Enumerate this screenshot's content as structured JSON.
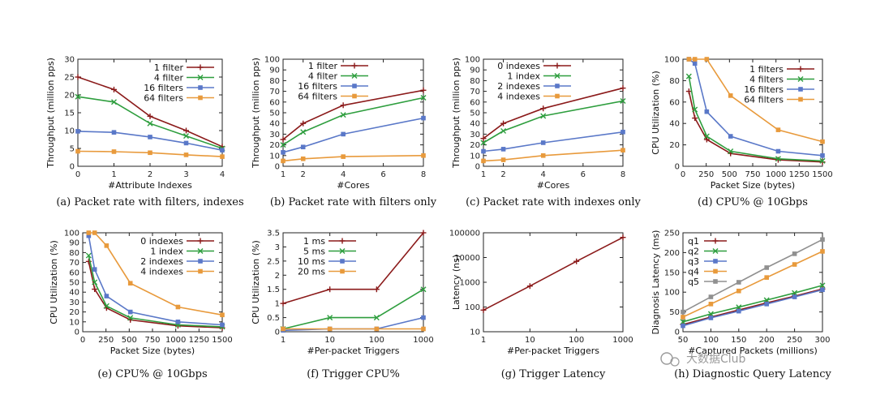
{
  "watermark": "大数据Club",
  "chart_data": [
    {
      "id": "a",
      "type": "line",
      "caption": "(a) Packet rate with filters, indexes",
      "xlabel": "#Attribute Indexes",
      "ylabel": "Throughput (million pps)",
      "xlim": [
        0,
        4
      ],
      "ylim": [
        0,
        30
      ],
      "xticks": [
        0,
        1,
        2,
        3,
        4
      ],
      "yticks": [
        0,
        5,
        10,
        15,
        20,
        25,
        30
      ],
      "legend_position": "top-right",
      "grid": false,
      "series": [
        {
          "name": "1 filter",
          "color": "#8b1a1a",
          "marker": "+",
          "x": [
            0,
            1,
            2,
            3,
            4
          ],
          "y": [
            25,
            21.5,
            14,
            10,
            5.5
          ]
        },
        {
          "name": "4 filter",
          "color": "#2e9e3e",
          "marker": "x",
          "x": [
            0,
            1,
            2,
            3,
            4
          ],
          "y": [
            19.5,
            18,
            12,
            8.5,
            5
          ]
        },
        {
          "name": "16 filters",
          "color": "#5a78c8",
          "marker": "sq",
          "x": [
            0,
            1,
            2,
            3,
            4
          ],
          "y": [
            9.8,
            9.5,
            8.2,
            6.5,
            4.5
          ]
        },
        {
          "name": "64 filters",
          "color": "#e89a3c",
          "marker": "sq",
          "x": [
            0,
            1,
            2,
            3,
            4
          ],
          "y": [
            4.2,
            4.1,
            3.8,
            3.2,
            2.7
          ]
        }
      ]
    },
    {
      "id": "b",
      "type": "line",
      "caption": "(b) Packet rate with filters only",
      "xlabel": "#Cores",
      "ylabel": "Throughput (million pps)",
      "xlim": [
        1,
        8
      ],
      "ylim": [
        0,
        100
      ],
      "xticks": [
        1,
        2,
        4,
        6,
        8
      ],
      "yticks": [
        0,
        10,
        20,
        30,
        40,
        50,
        60,
        70,
        80,
        90,
        100
      ],
      "legend_position": "top-left",
      "grid": false,
      "series": [
        {
          "name": "1 filter",
          "color": "#8b1a1a",
          "marker": "+",
          "x": [
            1,
            2,
            4,
            8
          ],
          "y": [
            25,
            40,
            57,
            71
          ]
        },
        {
          "name": "4 filter",
          "color": "#2e9e3e",
          "marker": "x",
          "x": [
            1,
            2,
            4,
            8
          ],
          "y": [
            20,
            32,
            48,
            64
          ]
        },
        {
          "name": "16 filters",
          "color": "#5a78c8",
          "marker": "sq",
          "x": [
            1,
            2,
            4,
            8
          ],
          "y": [
            13,
            18,
            30,
            45
          ]
        },
        {
          "name": "64 filters",
          "color": "#e89a3c",
          "marker": "sq",
          "x": [
            1,
            2,
            4,
            8
          ],
          "y": [
            5,
            7,
            9,
            10
          ]
        }
      ]
    },
    {
      "id": "c",
      "type": "line",
      "caption": "(c) Packet rate with indexes only",
      "xlabel": "#Cores",
      "ylabel": "Throughput (million pps)",
      "xlim": [
        1,
        8
      ],
      "ylim": [
        0,
        100
      ],
      "xticks": [
        1,
        2,
        4,
        6,
        8
      ],
      "yticks": [
        0,
        10,
        20,
        30,
        40,
        50,
        60,
        70,
        80,
        90,
        100
      ],
      "legend_position": "top-left",
      "grid": false,
      "series": [
        {
          "name": "0 indexes",
          "color": "#8b1a1a",
          "marker": "+",
          "x": [
            1,
            2,
            4,
            8
          ],
          "y": [
            26,
            40,
            54,
            73
          ]
        },
        {
          "name": "1 index",
          "color": "#2e9e3e",
          "marker": "x",
          "x": [
            1,
            2,
            4,
            8
          ],
          "y": [
            22,
            33,
            47,
            61
          ]
        },
        {
          "name": "2 indexes",
          "color": "#5a78c8",
          "marker": "sq",
          "x": [
            1,
            2,
            4,
            8
          ],
          "y": [
            14,
            16,
            22,
            32
          ]
        },
        {
          "name": "4 indexes",
          "color": "#e89a3c",
          "marker": "sq",
          "x": [
            1,
            2,
            4,
            8
          ],
          "y": [
            5,
            6,
            10,
            15
          ]
        }
      ]
    },
    {
      "id": "d",
      "type": "line",
      "caption": "(d) CPU% @ 10Gbps",
      "xlabel": "Packet Size (bytes)",
      "ylabel": "CPU Utilization (%)",
      "xlim": [
        0,
        1500
      ],
      "ylim": [
        0,
        100
      ],
      "xticks": [
        0,
        250,
        500,
        750,
        1000,
        1250,
        1500
      ],
      "yticks": [
        0,
        20,
        40,
        60,
        80,
        100
      ],
      "legend_position": "top-right",
      "grid": false,
      "series": [
        {
          "name": "1 filters",
          "color": "#8b1a1a",
          "marker": "+",
          "x": [
            64,
            128,
            256,
            512,
            1024,
            1500
          ],
          "y": [
            70,
            45,
            25,
            12,
            6,
            4
          ]
        },
        {
          "name": "4 filters",
          "color": "#2e9e3e",
          "marker": "x",
          "x": [
            64,
            128,
            256,
            512,
            1024,
            1500
          ],
          "y": [
            84,
            53,
            28,
            14,
            7,
            5
          ]
        },
        {
          "name": "16 filters",
          "color": "#5a78c8",
          "marker": "sq",
          "x": [
            64,
            128,
            256,
            512,
            1024,
            1500
          ],
          "y": [
            100,
            96,
            51,
            28,
            14,
            10
          ]
        },
        {
          "name": "64 filters",
          "color": "#e89a3c",
          "marker": "sq",
          "x": [
            64,
            128,
            256,
            512,
            1024,
            1500
          ],
          "y": [
            100,
            100,
            100,
            66,
            34,
            23
          ]
        }
      ]
    },
    {
      "id": "e",
      "type": "line",
      "caption": "(e) CPU% @ 10Gbps",
      "xlabel": "Packet Size (bytes)",
      "ylabel": "CPU Utilization (%)",
      "xlim": [
        0,
        1500
      ],
      "ylim": [
        0,
        100
      ],
      "xticks": [
        0,
        250,
        500,
        750,
        1000,
        1250,
        1500
      ],
      "yticks": [
        0,
        10,
        20,
        30,
        40,
        50,
        60,
        70,
        80,
        90,
        100
      ],
      "legend_position": "top-right",
      "grid": false,
      "series": [
        {
          "name": "0 indexes",
          "color": "#8b1a1a",
          "marker": "+",
          "x": [
            64,
            128,
            256,
            512,
            1024,
            1500
          ],
          "y": [
            71,
            43,
            24,
            12,
            6,
            4
          ]
        },
        {
          "name": "1 index",
          "color": "#2e9e3e",
          "marker": "x",
          "x": [
            64,
            128,
            256,
            512,
            1024,
            1500
          ],
          "y": [
            77,
            50,
            26,
            14,
            7,
            5
          ]
        },
        {
          "name": "2 indexes",
          "color": "#5a78c8",
          "marker": "sq",
          "x": [
            64,
            128,
            256,
            512,
            1024,
            1500
          ],
          "y": [
            97,
            63,
            36,
            20,
            10,
            7
          ]
        },
        {
          "name": "4 indexes",
          "color": "#e89a3c",
          "marker": "sq",
          "x": [
            64,
            128,
            256,
            512,
            1024,
            1500
          ],
          "y": [
            100,
            100,
            87,
            49,
            25,
            17
          ]
        }
      ]
    },
    {
      "id": "f",
      "type": "line",
      "caption": "(f) Trigger CPU%",
      "xlabel": "#Per-packet Triggers",
      "ylabel": "CPU Utilization (%)",
      "xscale": "log",
      "xlim": [
        1,
        1000
      ],
      "ylim": [
        0,
        3.5
      ],
      "xticks": [
        1,
        10,
        100,
        1000
      ],
      "yticks": [
        0,
        0.5,
        1,
        1.5,
        2,
        2.5,
        3,
        3.5
      ],
      "legend_position": "top-left",
      "grid": false,
      "series": [
        {
          "name": "1 ms",
          "color": "#8b1a1a",
          "marker": "+",
          "x": [
            1,
            10,
            100,
            1000
          ],
          "y": [
            1.0,
            1.5,
            1.5,
            3.5
          ]
        },
        {
          "name": "5 ms",
          "color": "#2e9e3e",
          "marker": "x",
          "x": [
            1,
            10,
            100,
            1000
          ],
          "y": [
            0.1,
            0.5,
            0.5,
            1.5
          ]
        },
        {
          "name": "10 ms",
          "color": "#5a78c8",
          "marker": "sq",
          "x": [
            1,
            10,
            100,
            1000
          ],
          "y": [
            0.05,
            0.1,
            0.1,
            0.5
          ]
        },
        {
          "name": "20 ms",
          "color": "#e89a3c",
          "marker": "sq",
          "x": [
            1,
            10,
            100,
            1000
          ],
          "y": [
            0.1,
            0.1,
            0.1,
            0.1
          ]
        }
      ]
    },
    {
      "id": "g",
      "type": "line",
      "caption": "(g) Trigger Latency",
      "xlabel": "#Per-packet Triggers",
      "ylabel": "Latency (ns)",
      "xscale": "log",
      "yscale": "log",
      "xlim": [
        1,
        1000
      ],
      "ylim": [
        10,
        100000
      ],
      "xticks": [
        1,
        10,
        100,
        1000
      ],
      "yticks": [
        10,
        100,
        1000,
        10000,
        100000
      ],
      "legend_position": "none",
      "grid": false,
      "series": [
        {
          "color": "#8b1a1a",
          "marker": "+",
          "x": [
            1,
            10,
            100,
            1000
          ],
          "y": [
            75,
            700,
            7000,
            65000
          ]
        }
      ]
    },
    {
      "id": "h",
      "type": "line",
      "caption": "(h) Diagnostic Query Latency",
      "xlabel": "#Captured Packets (millions)",
      "ylabel": "Diagnosis Latency (ms)",
      "xlim": [
        50,
        300
      ],
      "ylim": [
        0,
        250
      ],
      "xticks": [
        50,
        100,
        150,
        200,
        250,
        300
      ],
      "yticks": [
        0,
        50,
        100,
        150,
        200,
        250
      ],
      "legend_position": "top-left",
      "grid": false,
      "series": [
        {
          "name": "q1",
          "color": "#8b1a1a",
          "marker": "+",
          "x": [
            50,
            100,
            150,
            200,
            250,
            300
          ],
          "y": [
            18,
            37,
            55,
            73,
            90,
            108
          ]
        },
        {
          "name": "q2",
          "color": "#2e9e3e",
          "marker": "x",
          "x": [
            50,
            100,
            150,
            200,
            250,
            300
          ],
          "y": [
            25,
            45,
            62,
            80,
            98,
            117
          ]
        },
        {
          "name": "q3",
          "color": "#5a78c8",
          "marker": "sq",
          "x": [
            50,
            100,
            150,
            200,
            250,
            300
          ],
          "y": [
            15,
            35,
            52,
            70,
            88,
            106
          ]
        },
        {
          "name": "q4",
          "color": "#e89a3c",
          "marker": "sq",
          "x": [
            50,
            100,
            150,
            200,
            250,
            300
          ],
          "y": [
            37,
            70,
            103,
            137,
            170,
            203
          ]
        },
        {
          "name": "q5",
          "color": "#909090",
          "marker": "sq",
          "x": [
            50,
            100,
            150,
            200,
            250,
            300
          ],
          "y": [
            50,
            88,
            125,
            162,
            197,
            233
          ]
        }
      ]
    }
  ]
}
